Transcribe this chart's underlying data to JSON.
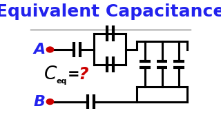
{
  "title": "Equivalent Capacitance",
  "title_color": "#2222ee",
  "title_fontsize": 18,
  "bg_color": "#ffffff",
  "line_color": "#000000",
  "line_width": 2.2,
  "node_color": "#cc0000",
  "label_A": "A",
  "label_B": "B",
  "label_color": "#2222ee",
  "ceq_color": "#000000",
  "q_color": "#cc0000"
}
